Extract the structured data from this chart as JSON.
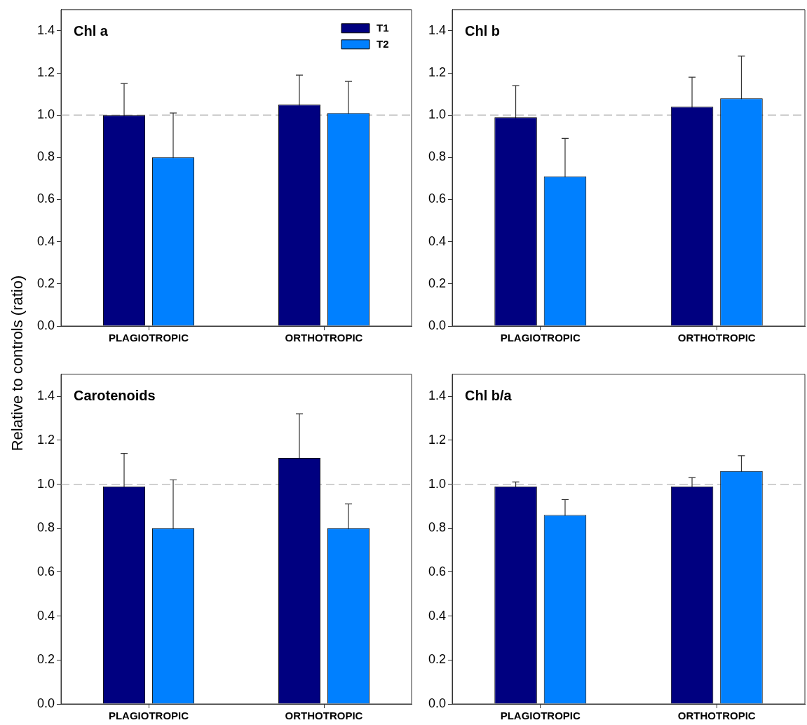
{
  "chart_data": [
    {
      "type": "bar",
      "title": "Chl a",
      "ylabel": "Relative to controls (ratio)",
      "categories": [
        "PLAGIOTROPIC",
        "ORTHOTROPIC"
      ],
      "legend": "top right",
      "grid": false,
      "ylim": [
        0,
        1.5
      ],
      "yticks": [
        {
          "value": 0,
          "label": "0.0"
        },
        {
          "value": 0.2,
          "label": "0.2"
        },
        {
          "value": 0.4,
          "label": "0.4"
        },
        {
          "value": 0.6,
          "label": "0.6"
        },
        {
          "value": 0.8,
          "label": "0.8"
        },
        {
          "value": 1,
          "label": "1.0"
        },
        {
          "value": 1.2,
          "label": "1.2"
        },
        {
          "value": 1.4,
          "label": "1.4"
        }
      ],
      "ref_lines": [
        {
          "axis": "y",
          "value": 1,
          "color": "#b4b4b4",
          "line_style": "dashed"
        }
      ],
      "series": [
        {
          "name": "T1",
          "color": "#000080",
          "values": [
            1.0,
            1.05
          ],
          "errors": [
            0.15,
            0.14
          ]
        },
        {
          "name": "T2",
          "color": "#0080ff",
          "values": [
            0.8,
            1.01
          ],
          "errors": [
            0.21,
            0.15
          ]
        }
      ]
    },
    {
      "type": "bar",
      "title": "Chl b",
      "categories": [
        "PLAGIOTROPIC",
        "ORTHOTROPIC"
      ],
      "grid": false,
      "ylim": [
        0,
        1.5
      ],
      "yticks": [
        {
          "value": 0,
          "label": "0.0"
        },
        {
          "value": 0.2,
          "label": "0.2"
        },
        {
          "value": 0.4,
          "label": "0.4"
        },
        {
          "value": 0.6,
          "label": "0.6"
        },
        {
          "value": 0.8,
          "label": "0.8"
        },
        {
          "value": 1,
          "label": "1.0"
        },
        {
          "value": 1.2,
          "label": "1.2"
        },
        {
          "value": 1.4,
          "label": "1.4"
        }
      ],
      "ref_lines": [
        {
          "axis": "y",
          "value": 1,
          "color": "#b4b4b4",
          "line_style": "dashed"
        }
      ],
      "series": [
        {
          "color": "#000080",
          "values": [
            0.99,
            1.04
          ],
          "errors": [
            0.15,
            0.14
          ]
        },
        {
          "color": "#0080ff",
          "values": [
            0.71,
            1.08
          ],
          "errors": [
            0.18,
            0.2
          ]
        }
      ]
    },
    {
      "type": "bar",
      "title": "Carotenoids",
      "categories": [
        "PLAGIOTROPIC",
        "ORTHOTROPIC"
      ],
      "grid": false,
      "ylim": [
        0,
        1.5
      ],
      "yticks": [
        {
          "value": 0,
          "label": "0.0"
        },
        {
          "value": 0.2,
          "label": "0.2"
        },
        {
          "value": 0.4,
          "label": "0.4"
        },
        {
          "value": 0.6,
          "label": "0.6"
        },
        {
          "value": 0.8,
          "label": "0.8"
        },
        {
          "value": 1,
          "label": "1.0"
        },
        {
          "value": 1.2,
          "label": "1.2"
        },
        {
          "value": 1.4,
          "label": "1.4"
        }
      ],
      "ref_lines": [
        {
          "axis": "y",
          "value": 1,
          "color": "#b4b4b4",
          "line_style": "dashed"
        }
      ],
      "series": [
        {
          "color": "#000080",
          "values": [
            0.99,
            1.12
          ],
          "errors": [
            0.15,
            0.2
          ]
        },
        {
          "color": "#0080ff",
          "values": [
            0.8,
            0.8
          ],
          "errors": [
            0.22,
            0.11
          ]
        }
      ]
    },
    {
      "type": "bar",
      "title": "Chl b/a",
      "categories": [
        "PLAGIOTROPIC",
        "ORTHOTROPIC"
      ],
      "grid": false,
      "ylim": [
        0,
        1.5
      ],
      "yticks": [
        {
          "value": 0,
          "label": "0.0"
        },
        {
          "value": 0.2,
          "label": "0.2"
        },
        {
          "value": 0.4,
          "label": "0.4"
        },
        {
          "value": 0.6,
          "label": "0.6"
        },
        {
          "value": 0.8,
          "label": "0.8"
        },
        {
          "value": 1,
          "label": "1.0"
        },
        {
          "value": 1.2,
          "label": "1.2"
        },
        {
          "value": 1.4,
          "label": "1.4"
        }
      ],
      "ref_lines": [
        {
          "axis": "y",
          "value": 1,
          "color": "#b4b4b4",
          "line_style": "dashed"
        }
      ],
      "series": [
        {
          "color": "#000080",
          "values": [
            0.99,
            0.99
          ],
          "errors": [
            0.02,
            0.04
          ]
        },
        {
          "color": "#0080ff",
          "values": [
            0.86,
            1.06
          ],
          "errors": [
            0.07,
            0.07
          ]
        }
      ]
    }
  ]
}
